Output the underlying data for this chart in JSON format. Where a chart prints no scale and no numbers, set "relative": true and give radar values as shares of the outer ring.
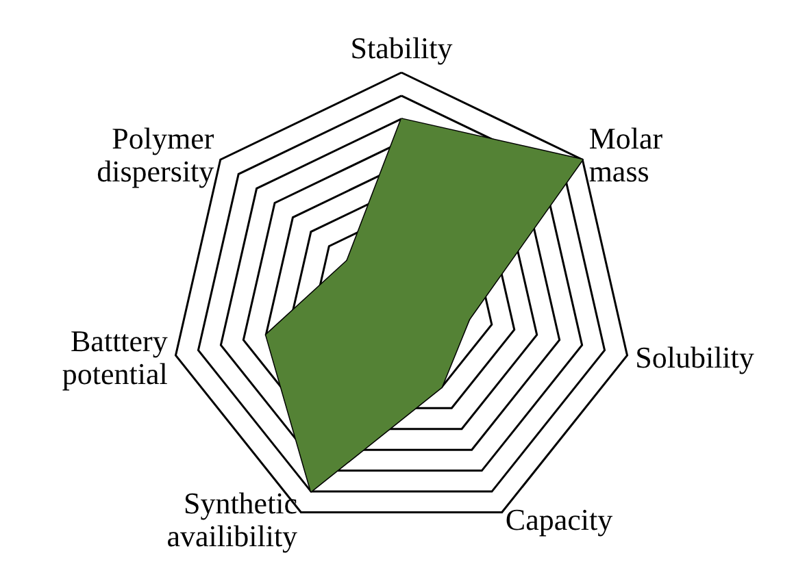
{
  "chart_data": {
    "type": "radar",
    "relative": true,
    "categories": [
      "Stability",
      "Molar mass",
      "Solubility",
      "Capacity",
      "Synthetic availibility",
      "Batttery potential",
      "Polymer dispersity"
    ],
    "series": [
      {
        "color": "#548235",
        "values": [
          0.8,
          1.0,
          0.3,
          0.4,
          0.9,
          0.6,
          0.3
        ]
      }
    ],
    "grid": true,
    "marker": "none"
  }
}
